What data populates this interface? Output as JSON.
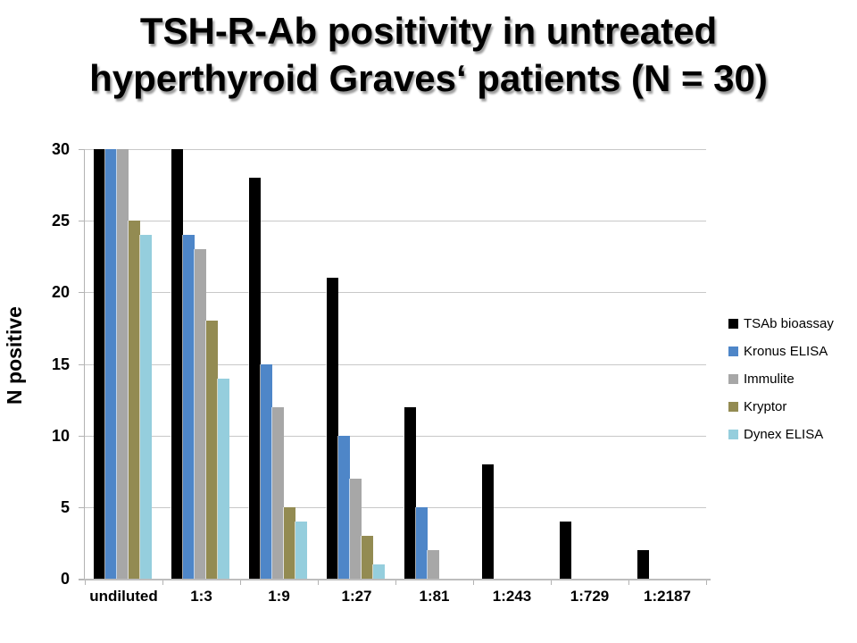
{
  "title": {
    "line1": "TSH-R-Ab positivity in untreated",
    "line2": "hyperthyroid Graves‘ patients (N = 30)"
  },
  "chart_data": {
    "type": "bar",
    "title": "TSH-R-Ab positivity in untreated hyperthyroid Graves‘ patients (N = 30)",
    "xlabel": "",
    "ylabel": "N positive",
    "ylim": [
      0,
      30
    ],
    "yticks": [
      0,
      5,
      10,
      15,
      20,
      25,
      30
    ],
    "grid": true,
    "legend_position": "right",
    "categories": [
      "undiluted",
      "1:3",
      "1:9",
      "1:27",
      "1:81",
      "1:243",
      "1:729",
      "1:2187"
    ],
    "series": [
      {
        "name": "TSAb bioassay",
        "color": "#000000",
        "values": [
          30,
          30,
          28,
          21,
          12,
          8,
          4,
          2
        ]
      },
      {
        "name": "Kronus ELISA",
        "color": "#4E86C8",
        "values": [
          30,
          24,
          15,
          10,
          5,
          0,
          0,
          0
        ]
      },
      {
        "name": "Immulite",
        "color": "#A7A7A7",
        "values": [
          30,
          23,
          12,
          7,
          2,
          0,
          0,
          0
        ]
      },
      {
        "name": "Kryptor",
        "color": "#938B52",
        "values": [
          25,
          18,
          5,
          3,
          0,
          0,
          0,
          0
        ]
      },
      {
        "name": "Dynex ELISA",
        "color": "#95CEDD",
        "values": [
          24,
          14,
          4,
          1,
          0,
          0,
          0,
          0
        ]
      }
    ]
  },
  "style_colors": {
    "gridline": "#C8C8C8",
    "axis_line": "#B3B3B3",
    "title_shadow": "#9C9C9C",
    "background": "#FFFFFF"
  }
}
